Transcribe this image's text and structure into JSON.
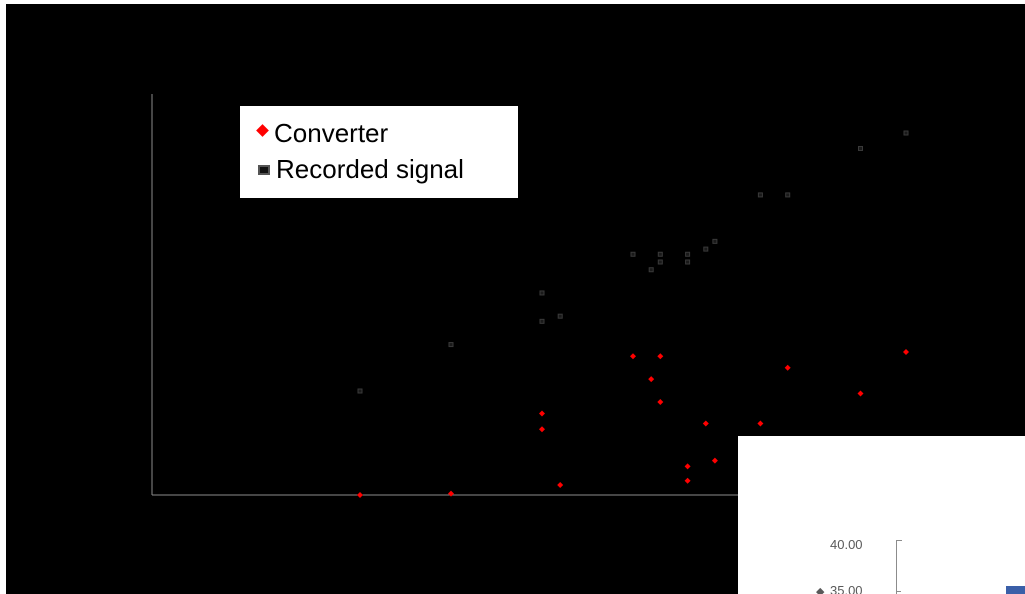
{
  "chart_data": {
    "type": "scatter",
    "title": "",
    "xlabel": "",
    "ylabel": "",
    "grid": false,
    "legend_position": "top-left",
    "series": [
      {
        "name": "Converter",
        "marker": "diamond",
        "color": "#ff0000",
        "points": [
          [
            1,
            0.0
          ],
          [
            2,
            0.01
          ],
          [
            3,
            0.57
          ],
          [
            3,
            0.46
          ],
          [
            3.2,
            0.07
          ],
          [
            4,
            0.97
          ],
          [
            4.3,
            0.97
          ],
          [
            4.2,
            0.81
          ],
          [
            4.3,
            0.65
          ],
          [
            4.6,
            0.2
          ],
          [
            4.8,
            0.5
          ],
          [
            4.6,
            0.1
          ],
          [
            4.9,
            0.24
          ],
          [
            5.4,
            0.5
          ],
          [
            5.7,
            0.89
          ],
          [
            6.5,
            0.71
          ],
          [
            7,
            1.0
          ]
        ]
      },
      {
        "name": "Recorded signal",
        "marker": "square",
        "color": "#111111",
        "points": [
          [
            1,
            0.0
          ],
          [
            2,
            0.18
          ],
          [
            3,
            0.38
          ],
          [
            3,
            0.27
          ],
          [
            3.2,
            0.29
          ],
          [
            4,
            0.53
          ],
          [
            4.3,
            0.53
          ],
          [
            4.2,
            0.47
          ],
          [
            4.3,
            0.5
          ],
          [
            4.6,
            0.5
          ],
          [
            4.6,
            0.53
          ],
          [
            4.8,
            0.55
          ],
          [
            4.9,
            0.58
          ],
          [
            5.4,
            0.76
          ],
          [
            5.7,
            0.76
          ],
          [
            6.5,
            0.94
          ],
          [
            7,
            1.0
          ]
        ]
      }
    ],
    "inset": {
      "tick_labels": [
        "40.00",
        "35.00"
      ],
      "prefix_glyph": "◆",
      "bar_color": "#3a5fa8"
    }
  },
  "legend": {
    "items": [
      {
        "label": "Converter",
        "color": "#ff0000",
        "icon": "diamond-marker-icon"
      },
      {
        "label": "Recorded signal",
        "color": "#111111",
        "icon": "square-marker-icon"
      }
    ]
  },
  "colors": {
    "background": "#000000",
    "axis": "#8c8c8c"
  }
}
